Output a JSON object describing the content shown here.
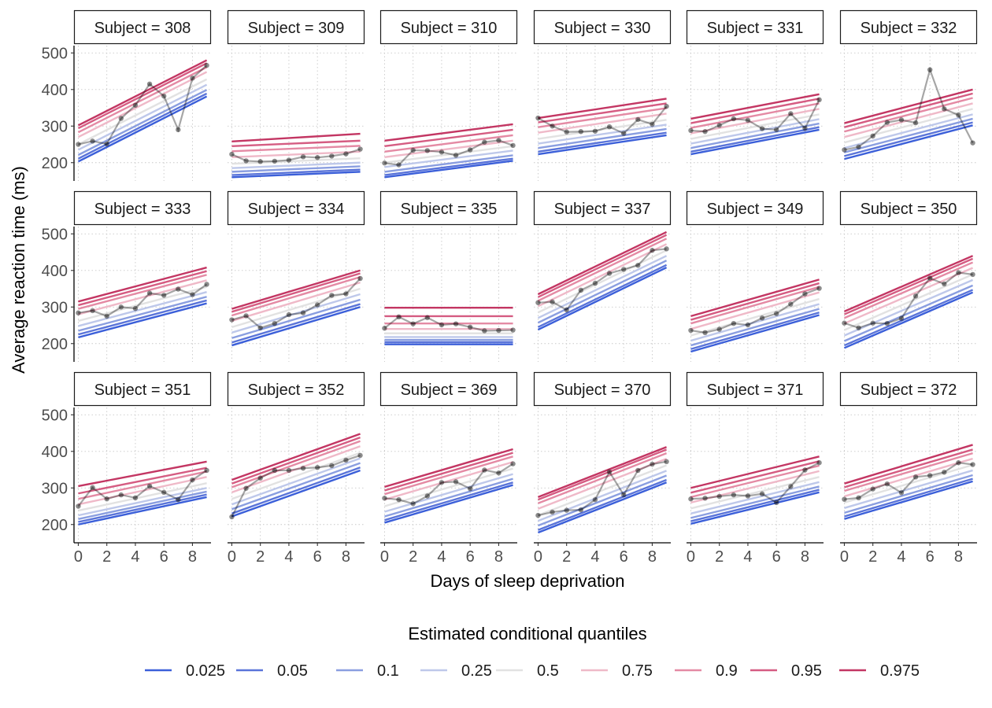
{
  "chart_data": {
    "type": "line",
    "x_label": "Days of sleep deprivation",
    "y_label": "Average reaction time (ms)",
    "xlim": [
      -0.3,
      9.3
    ],
    "ylim": [
      150,
      520
    ],
    "x_ticks": [
      0,
      2,
      4,
      6,
      8
    ],
    "y_ticks": [
      200,
      300,
      400,
      500
    ],
    "grid": true,
    "legend": {
      "title": "Estimated conditional quantiles",
      "placement": "bottom",
      "entries": [
        {
          "label": "0.025",
          "color": "#3b5fd9"
        },
        {
          "label": "0.05",
          "color": "#5a74d9"
        },
        {
          "label": "0.1",
          "color": "#8a9ee0"
        },
        {
          "label": "0.25",
          "color": "#bec8ea"
        },
        {
          "label": "0.5",
          "color": "#e2e2e2"
        },
        {
          "label": "0.75",
          "color": "#efb9c8"
        },
        {
          "label": "0.9",
          "color": "#e48aa4"
        },
        {
          "label": "0.95",
          "color": "#d55c82"
        },
        {
          "label": "0.975",
          "color": "#c33663"
        }
      ]
    },
    "facet_prefix": "Subject = ",
    "panels": [
      {
        "subject": "308",
        "quantile_lines": {
          "y0": [
            203,
            211,
            221,
            235,
            250,
            270,
            283,
            294,
            302
          ],
          "y9": [
            381,
            389,
            399,
            413,
            428,
            448,
            461,
            472,
            480
          ]
        },
        "observed": [
          250,
          259,
          251,
          321,
          357,
          415,
          382,
          290,
          431,
          466
        ]
      },
      {
        "subject": "309",
        "quantile_lines": {
          "y0": [
            160,
            166,
            175,
            185,
            197,
            215,
            231,
            245,
            258
          ],
          "y9": [
            175,
            181,
            190,
            200,
            212,
            230,
            246,
            260,
            279
          ]
        },
        "observed": [
          223,
          205,
          203,
          204,
          207,
          216,
          214,
          218,
          224,
          237
        ]
      },
      {
        "subject": "310",
        "quantile_lines": {
          "y0": [
            160,
            166,
            175,
            188,
            200,
            215,
            230,
            245,
            260
          ],
          "y9": [
            205,
            211,
            220,
            233,
            245,
            260,
            275,
            290,
            305
          ]
        },
        "observed": [
          199,
          194,
          234,
          233,
          229,
          220,
          235,
          256,
          261,
          247
        ]
      },
      {
        "subject": "330",
        "quantile_lines": {
          "y0": [
            223,
            230,
            240,
            252,
            265,
            282,
            297,
            310,
            322
          ],
          "y9": [
            275,
            282,
            292,
            304,
            317,
            334,
            349,
            362,
            375
          ]
        },
        "observed": [
          322,
          300,
          284,
          285,
          286,
          298,
          280,
          318,
          305,
          354
        ]
      },
      {
        "subject": "331",
        "quantile_lines": {
          "y0": [
            223,
            230,
            240,
            252,
            265,
            280,
            295,
            308,
            320
          ],
          "y9": [
            290,
            297,
            307,
            319,
            332,
            347,
            362,
            375,
            387
          ]
        },
        "observed": [
          288,
          285,
          302,
          320,
          316,
          293,
          290,
          334,
          294,
          372
        ]
      },
      {
        "subject": "332",
        "quantile_lines": {
          "y0": [
            210,
            218,
            228,
            240,
            255,
            270,
            285,
            297,
            308
          ],
          "y9": [
            302,
            310,
            320,
            332,
            347,
            362,
            377,
            389,
            400
          ]
        },
        "observed": [
          235,
          243,
          273,
          310,
          317,
          309,
          454,
          347,
          330,
          254
        ]
      },
      {
        "subject": "333",
        "quantile_lines": {
          "y0": [
            217,
            225,
            235,
            248,
            262,
            280,
            295,
            305,
            315
          ],
          "y9": [
            310,
            318,
            328,
            341,
            355,
            373,
            388,
            398,
            408
          ]
        },
        "observed": [
          284,
          290,
          275,
          300,
          296,
          338,
          332,
          349,
          334,
          362
        ]
      },
      {
        "subject": "334",
        "quantile_lines": {
          "y0": [
            195,
            203,
            215,
            230,
            245,
            262,
            277,
            287,
            295
          ],
          "y9": [
            300,
            308,
            320,
            335,
            350,
            367,
            382,
            392,
            400
          ]
        },
        "observed": [
          265,
          276,
          243,
          255,
          279,
          284,
          306,
          332,
          336,
          378
        ]
      },
      {
        "subject": "335",
        "quantile_lines": {
          "y0": [
            198,
            204,
            210,
            218,
            228,
            240,
            255,
            275,
            298
          ],
          "y9": [
            198,
            204,
            210,
            218,
            228,
            240,
            255,
            275,
            298
          ]
        },
        "observed": [
          242,
          273,
          254,
          271,
          251,
          254,
          245,
          235,
          236,
          237
        ]
      },
      {
        "subject": "337",
        "quantile_lines": {
          "y0": [
            238,
            245,
            257,
            270,
            285,
            302,
            317,
            327,
            335
          ],
          "y9": [
            408,
            415,
            427,
            440,
            455,
            472,
            487,
            497,
            505
          ]
        },
        "observed": [
          312,
          314,
          292,
          346,
          365,
          392,
          403,
          414,
          455,
          459
        ]
      },
      {
        "subject": "349",
        "quantile_lines": {
          "y0": [
            178,
            185,
            195,
            208,
            222,
            240,
            255,
            265,
            275
          ],
          "y9": [
            278,
            285,
            295,
            308,
            322,
            340,
            355,
            365,
            375
          ]
        },
        "observed": [
          236,
          230,
          239,
          255,
          251,
          270,
          282,
          308,
          336,
          351
        ]
      },
      {
        "subject": "350",
        "quantile_lines": {
          "y0": [
            188,
            195,
            207,
            222,
            237,
            255,
            270,
            280,
            288
          ],
          "y9": [
            340,
            347,
            359,
            374,
            389,
            407,
            422,
            432,
            440
          ]
        },
        "observed": [
          256,
          243,
          256,
          255,
          269,
          330,
          379,
          363,
          394,
          389
        ]
      },
      {
        "subject": "351",
        "quantile_lines": {
          "y0": [
            200,
            207,
            215,
            225,
            238,
            255,
            270,
            285,
            305
          ],
          "y9": [
            275,
            282,
            290,
            300,
            313,
            330,
            345,
            355,
            372
          ]
        },
        "observed": [
          250,
          301,
          270,
          281,
          273,
          305,
          288,
          268,
          322,
          348
        ]
      },
      {
        "subject": "352",
        "quantile_lines": {
          "y0": [
            222,
            230,
            242,
            255,
            270,
            288,
            302,
            312,
            322
          ],
          "y9": [
            348,
            356,
            368,
            381,
            396,
            414,
            428,
            438,
            448
          ]
        },
        "observed": [
          221,
          299,
          327,
          348,
          348,
          354,
          356,
          361,
          376,
          389
        ]
      },
      {
        "subject": "369",
        "quantile_lines": {
          "y0": [
            205,
            212,
            222,
            235,
            250,
            268,
            283,
            293,
            303
          ],
          "y9": [
            308,
            315,
            325,
            338,
            353,
            371,
            386,
            396,
            406
          ]
        },
        "observed": [
          272,
          268,
          257,
          278,
          315,
          317,
          298,
          349,
          341,
          366
        ]
      },
      {
        "subject": "370",
        "quantile_lines": {
          "y0": [
            178,
            185,
            197,
            210,
            225,
            243,
            258,
            268,
            275
          ],
          "y9": [
            315,
            322,
            334,
            347,
            362,
            380,
            395,
            405,
            412
          ]
        },
        "observed": [
          225,
          234,
          239,
          240,
          268,
          344,
          281,
          348,
          365,
          372
        ]
      },
      {
        "subject": "371",
        "quantile_lines": {
          "y0": [
            202,
            209,
            218,
            230,
            244,
            260,
            275,
            287,
            300
          ],
          "y9": [
            288,
            295,
            304,
            316,
            330,
            346,
            361,
            373,
            386
          ]
        },
        "observed": [
          270,
          272,
          277,
          281,
          278,
          284,
          260,
          304,
          349,
          369
        ]
      },
      {
        "subject": "372",
        "quantile_lines": {
          "y0": [
            215,
            222,
            232,
            245,
            260,
            277,
            292,
            302,
            312
          ],
          "y9": [
            318,
            325,
            335,
            348,
            363,
            380,
            395,
            405,
            418
          ]
        },
        "observed": [
          269,
          273,
          297,
          311,
          287,
          330,
          334,
          343,
          369,
          364
        ]
      }
    ]
  }
}
